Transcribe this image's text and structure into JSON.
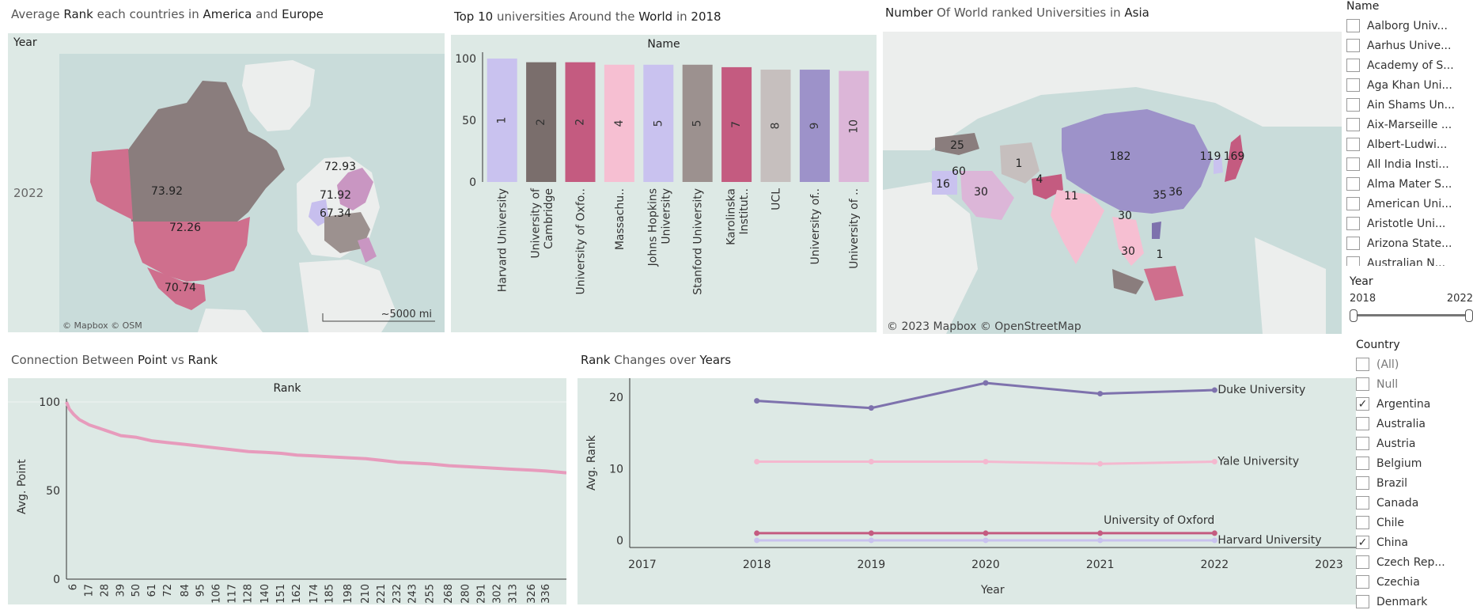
{
  "titles": {
    "map_americas": {
      "a": "Average ",
      "b": "Rank",
      "c": " each countries in ",
      "d": "America",
      "e": " and ",
      "f": "Europe"
    },
    "top10": {
      "a": "Top 10",
      "b": " universities Around the ",
      "c": "World",
      "d": " in ",
      "e": "2018"
    },
    "asia": {
      "a": "Number",
      "b": " Of World ranked Universities in ",
      "c": "Asia"
    },
    "point_rank": {
      "a": "Connection Between ",
      "b": "Point",
      "c": " vs ",
      "d": "Rank"
    },
    "rank_changes": {
      "a": "Rank",
      "b": " Changes over ",
      "c": "Years"
    }
  },
  "map_americas": {
    "row_header": "Year",
    "row_value": "2022",
    "labels": [
      "73.92",
      "72.26",
      "70.74",
      "72.93",
      "71.92",
      "67.34"
    ],
    "attribution": "© Mapbox  © OSM",
    "scale": "~5000 mi"
  },
  "asia_map": {
    "labels": [
      "25",
      "1",
      "182",
      "60",
      "16",
      "30",
      "4",
      "11",
      "119",
      "169",
      "35",
      "36",
      "30",
      "30",
      "1"
    ],
    "attribution": "© 2023 Mapbox  © OpenStreetMap"
  },
  "colors": {
    "map_base": "#8a7d7d",
    "map_pink": "#cf6f8d",
    "map_lavender": "#c7bfee",
    "line_duke": "#7e72ad",
    "line_yale": "#f4b8cf",
    "line_oxford": "#c45b80",
    "line_harvard": "#c9c2ef",
    "scatter": "#e79bbc"
  },
  "chart_data": [
    {
      "type": "bar",
      "header": "Name",
      "categories": [
        "Harvard University",
        "University of Cambridge",
        "University of Oxfo..",
        "Massachu..",
        "Johns Hopkins University",
        "Stanford University",
        "Karolinska Institut..",
        "UCL",
        "University of..",
        "University of .."
      ],
      "values": [
        100,
        97,
        97,
        95,
        95,
        95,
        93,
        91,
        91,
        90
      ],
      "labels": [
        "1",
        "2",
        "2",
        "4",
        "5",
        "5",
        "7",
        "8",
        "9",
        "10"
      ],
      "colors": [
        "#c9c2ef",
        "#7a6e6c",
        "#c45b80",
        "#f6bfd2",
        "#c9c2ef",
        "#9c918f",
        "#c45b80",
        "#c6bfbe",
        "#9d92c9",
        "#dcb6d8"
      ],
      "yticks": [
        0,
        50,
        100
      ],
      "ylim": [
        0,
        100
      ]
    },
    {
      "type": "line",
      "header": "Rank",
      "ylabel": "Avg. Point",
      "xticks": [
        "6",
        "17",
        "28",
        "39",
        "50",
        "61",
        "72",
        "84",
        "95",
        "106",
        "117",
        "128",
        "140",
        "151",
        "162",
        "174",
        "185",
        "198",
        "210",
        "221",
        "232",
        "243",
        "255",
        "268",
        "280",
        "291",
        "302",
        "313",
        "326",
        "336"
      ],
      "x": [
        1,
        3,
        6,
        10,
        17,
        28,
        39,
        50,
        61,
        72,
        84,
        95,
        106,
        117,
        128,
        140,
        151,
        162,
        174,
        185,
        198,
        210,
        221,
        232,
        243,
        255,
        268,
        280,
        291,
        302,
        313,
        326,
        336,
        350
      ],
      "y": [
        100,
        96,
        93,
        90,
        87,
        84,
        81,
        80,
        78,
        77,
        76,
        75,
        74,
        73,
        72,
        71.5,
        71,
        70,
        69.5,
        69,
        68.5,
        68,
        67,
        66,
        65.5,
        65,
        64,
        63.5,
        63,
        62.5,
        62,
        61.5,
        61,
        60
      ],
      "yticks": [
        0,
        50,
        100
      ],
      "ylim": [
        0,
        100
      ]
    },
    {
      "type": "line",
      "xlabel": "Year",
      "ylabel": "Avg. Rank",
      "xticks": [
        "2017",
        "2018",
        "2019",
        "2020",
        "2021",
        "2022",
        "2023"
      ],
      "yticks": [
        "0",
        "10",
        "20"
      ],
      "ylim": [
        -1,
        22
      ],
      "series": [
        {
          "name": "Duke University",
          "x": [
            2018,
            2019,
            2020,
            2021,
            2022
          ],
          "values": [
            19.5,
            18.5,
            22,
            20.5,
            21
          ]
        },
        {
          "name": "Yale University",
          "x": [
            2018,
            2019,
            2020,
            2021,
            2022
          ],
          "values": [
            11,
            11,
            11,
            10.7,
            11
          ]
        },
        {
          "name": "University of Oxford",
          "x": [
            2018,
            2019,
            2020,
            2021,
            2022
          ],
          "values": [
            1,
            1,
            1,
            1,
            1
          ]
        },
        {
          "name": "Harvard University",
          "x": [
            2018,
            2019,
            2020,
            2021,
            2022
          ],
          "values": [
            0,
            0,
            0,
            0,
            0
          ]
        }
      ]
    }
  ],
  "filters": {
    "name": {
      "title": "Name",
      "items": [
        "Aalborg Univ...",
        "Aarhus Unive...",
        "Academy of S...",
        "Aga Khan Uni...",
        "Ain Shams Un...",
        "Aix-Marseille ...",
        "Albert-Ludwi...",
        "All India Insti...",
        "Alma Mater S...",
        "American Uni...",
        "Aristotle Uni...",
        "Arizona State...",
        "Australian N..."
      ]
    },
    "year": {
      "title": "Year",
      "min": "2018",
      "max": "2022"
    },
    "country": {
      "title": "Country",
      "items": [
        {
          "label": "(All)",
          "checked": false
        },
        {
          "label": "Null",
          "checked": false
        },
        {
          "label": "Argentina",
          "checked": true
        },
        {
          "label": "Australia",
          "checked": false
        },
        {
          "label": "Austria",
          "checked": false
        },
        {
          "label": "Belgium",
          "checked": false
        },
        {
          "label": "Brazil",
          "checked": false
        },
        {
          "label": "Canada",
          "checked": false
        },
        {
          "label": "Chile",
          "checked": false
        },
        {
          "label": "China",
          "checked": true
        },
        {
          "label": "Czech Rep...",
          "checked": false
        },
        {
          "label": "Czechia",
          "checked": false
        },
        {
          "label": "Denmark",
          "checked": false
        }
      ]
    }
  }
}
